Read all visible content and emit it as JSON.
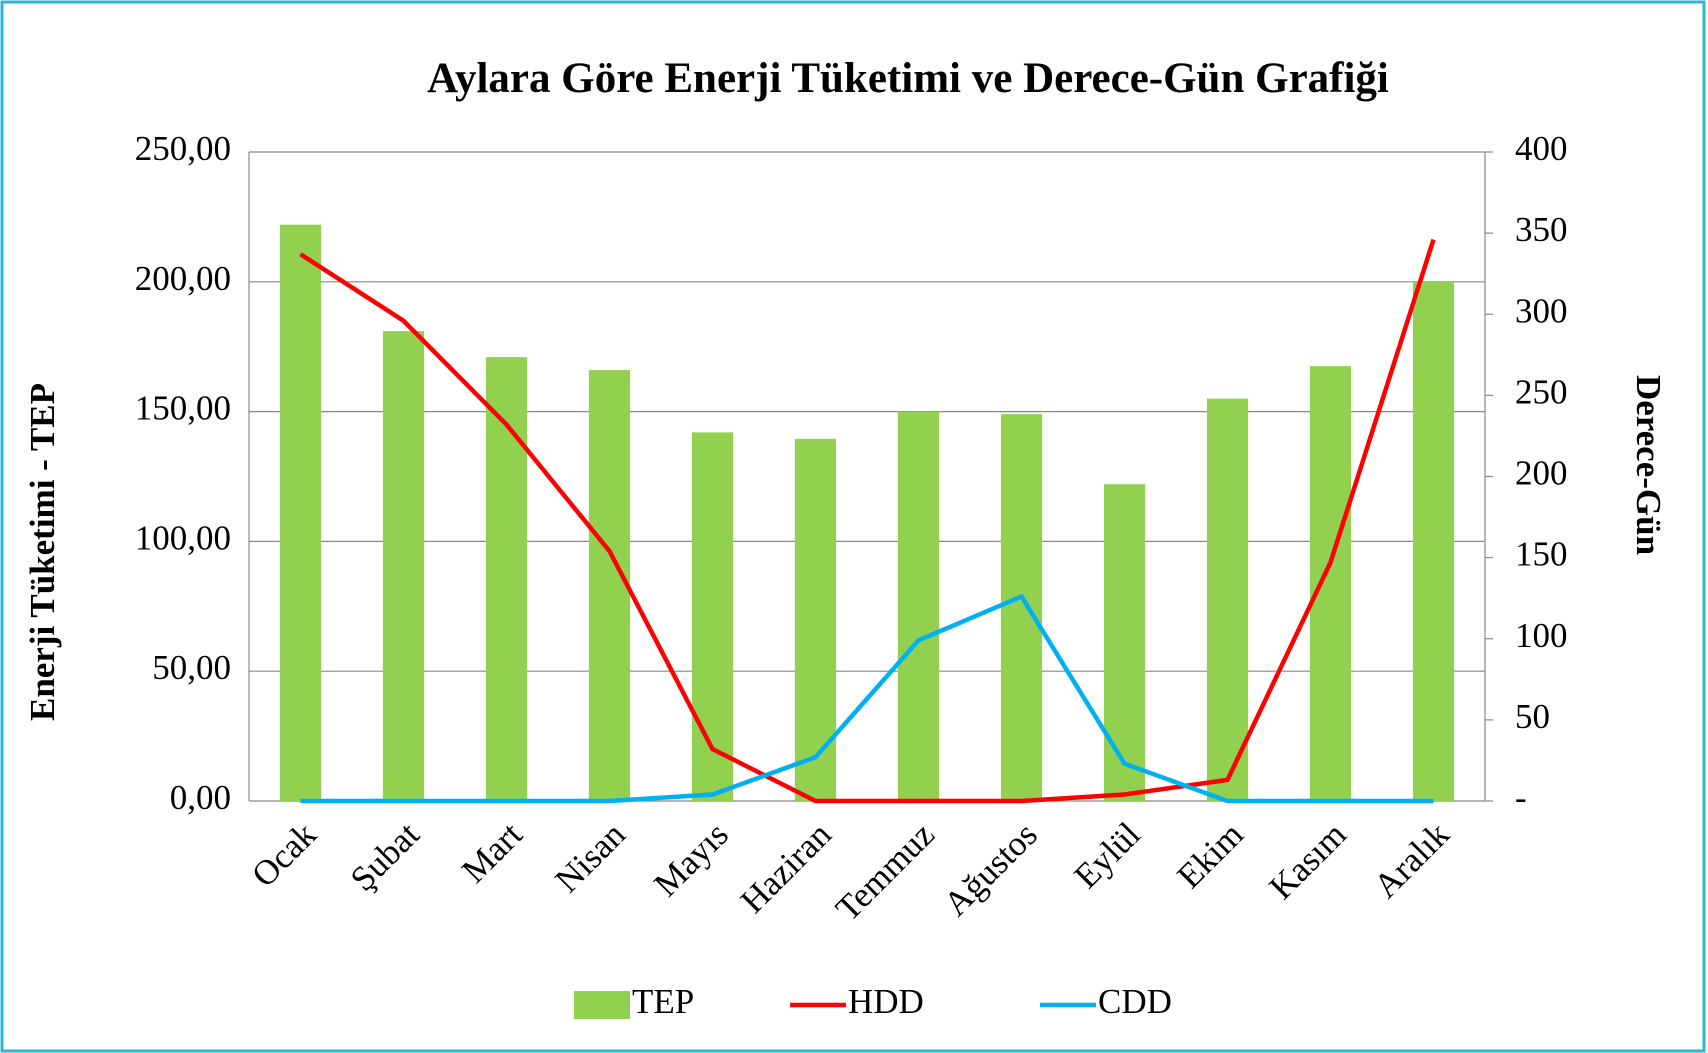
{
  "chart_data": {
    "type": "bar-line",
    "title": "Aylara Göre Enerji Tüketimi ve Derece-Gün Grafiği",
    "ylabel": "Enerji Tüketimi - TEP",
    "y2label": "Derece-Gün",
    "categories": [
      "Ocak",
      "Şubat",
      "Mart",
      "Nisan",
      "Mayıs",
      "Haziran",
      "Temmuz",
      "Ağustos",
      "Eylül",
      "Ekim",
      "Kasım",
      "Aralık"
    ],
    "series": [
      {
        "name": "TEP",
        "type": "bar",
        "color": "#92d050",
        "values": [
          222,
          181,
          171,
          166,
          142,
          139.5,
          150,
          149,
          122,
          155,
          167.5,
          200
        ]
      },
      {
        "name": "HDD",
        "type": "line",
        "axis": "y2",
        "color": "#ff0000",
        "values": [
          337,
          296,
          232,
          154,
          32,
          0,
          0,
          0,
          4,
          13,
          147,
          346
        ]
      },
      {
        "name": "CDD",
        "type": "line",
        "axis": "y2",
        "color": "#00b0f0",
        "values": [
          0,
          0,
          0,
          0,
          4,
          27,
          99,
          126,
          23,
          0,
          0,
          0
        ]
      }
    ],
    "ylim": [
      0,
      250
    ],
    "yticks": [
      {
        "value": 0,
        "label": "0,00"
      },
      {
        "value": 50,
        "label": "50,00"
      },
      {
        "value": 100,
        "label": "100,00"
      },
      {
        "value": 150,
        "label": "150,00"
      },
      {
        "value": 200,
        "label": "200,00"
      },
      {
        "value": 250,
        "label": "250,00"
      }
    ],
    "y2lim": [
      0,
      400
    ],
    "y2ticks": [
      {
        "value": 0,
        "label": "-"
      },
      50,
      100,
      150,
      200,
      250,
      300,
      350,
      400
    ],
    "grid": true,
    "legend": "bottom"
  }
}
